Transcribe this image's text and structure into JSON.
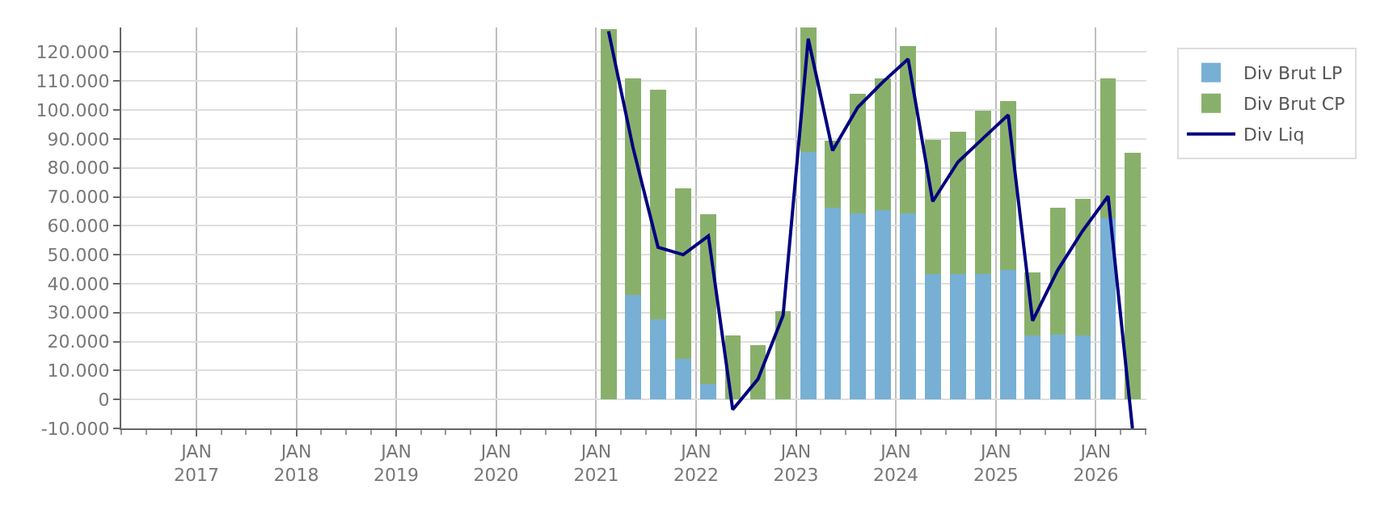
{
  "chart_data": {
    "type": "bar",
    "stacked": true,
    "x": [
      "2021-02-15",
      "2021-05-15",
      "2021-08-15",
      "2021-11-15",
      "2022-02-15",
      "2022-05-15",
      "2022-08-15",
      "2022-11-15",
      "2023-02-15",
      "2023-05-15",
      "2023-08-15",
      "2023-11-15",
      "2024-02-15",
      "2024-05-15",
      "2024-08-15",
      "2024-11-15",
      "2025-02-15",
      "2025-05-15",
      "2025-08-15",
      "2025-11-15",
      "2026-02-15",
      "2026-05-15"
    ],
    "series": [
      {
        "name": "Div Brut LP",
        "color": "#77b0d4",
        "values": [
          0,
          36000,
          27700,
          14000,
          5300,
          0,
          0,
          0,
          85600,
          66300,
          64200,
          65300,
          64200,
          43200,
          43200,
          43200,
          44600,
          22100,
          22400,
          22100,
          62500,
          0
        ]
      },
      {
        "name": "Div Brut CP",
        "color": "#89b06b",
        "values": [
          128000,
          74900,
          79300,
          58800,
          58700,
          22000,
          18800,
          30400,
          42900,
          23200,
          41400,
          45600,
          57800,
          46600,
          49300,
          56600,
          58400,
          21900,
          43800,
          47200,
          48400,
          85100
        ]
      },
      {
        "name": "Div Liq",
        "type": "line",
        "color": "#000080",
        "values": [
          127200,
          87200,
          52600,
          50000,
          56500,
          -3500,
          7000,
          29000,
          124600,
          86000,
          100900,
          109700,
          117600,
          68400,
          82000,
          90200,
          98300,
          27200,
          44700,
          58400,
          70200,
          -10000
        ]
      }
    ],
    "xlim": [
      "2016-04-01",
      "2026-07-05"
    ],
    "xticks": [
      {
        "value": "2017-01-01",
        "label": "JAN\n2017"
      },
      {
        "value": "2018-01-01",
        "label": "JAN\n2018"
      },
      {
        "value": "2019-01-01",
        "label": "JAN\n2019"
      },
      {
        "value": "2020-01-01",
        "label": "JAN\n2020"
      },
      {
        "value": "2021-01-01",
        "label": "JAN\n2021"
      },
      {
        "value": "2022-01-01",
        "label": "JAN\n2022"
      },
      {
        "value": "2023-01-01",
        "label": "JAN\n2023"
      },
      {
        "value": "2024-01-01",
        "label": "JAN\n2024"
      },
      {
        "value": "2025-01-01",
        "label": "JAN\n2025"
      },
      {
        "value": "2026-01-01",
        "label": "JAN\n2026"
      }
    ],
    "ylim": [
      -10000,
      128500
    ],
    "yticks": [
      {
        "value": -10000,
        "label": "-10.000"
      },
      {
        "value": 0,
        "label": "0"
      },
      {
        "value": 10000,
        "label": "10.000"
      },
      {
        "value": 20000,
        "label": "20.000"
      },
      {
        "value": 30000,
        "label": "30.000"
      },
      {
        "value": 40000,
        "label": "40.000"
      },
      {
        "value": 50000,
        "label": "50.000"
      },
      {
        "value": 60000,
        "label": "60.000"
      },
      {
        "value": 70000,
        "label": "70.000"
      },
      {
        "value": 80000,
        "label": "80.000"
      },
      {
        "value": 90000,
        "label": "90.000"
      },
      {
        "value": 100000,
        "label": "100.000"
      },
      {
        "value": 110000,
        "label": "110.000"
      },
      {
        "value": 120000,
        "label": "120.000"
      }
    ],
    "grid": true,
    "legend": "top right",
    "marker": "none",
    "line_style": "solid"
  }
}
